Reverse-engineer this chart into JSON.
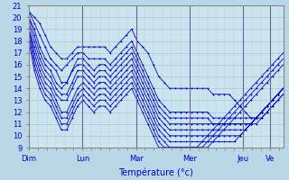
{
  "xlabel": "Température (°c)",
  "line_color": "#0000cc",
  "fig_bg": "#b8d8e8",
  "ax_bg": "#cce4ee",
  "ylim": [
    9,
    21
  ],
  "xlim": [
    0,
    228
  ],
  "yticks": [
    9,
    10,
    11,
    12,
    13,
    14,
    15,
    16,
    17,
    18,
    19,
    20,
    21
  ],
  "day_labels": [
    "Dim",
    "Lun",
    "Mar",
    "Mer",
    "Jeu",
    "Ve"
  ],
  "day_positions": [
    0,
    48,
    96,
    144,
    192,
    216
  ],
  "series": [
    [
      20.5,
      20.0,
      19.5,
      18.5,
      17.5,
      17.0,
      16.5,
      16.5,
      17.0,
      17.5,
      17.5,
      17.5,
      17.5,
      17.5,
      17.5,
      17.0,
      17.5,
      18.0,
      18.5,
      19.0,
      18.0,
      17.5,
      17.0,
      16.0,
      15.0,
      14.5,
      14.0,
      14.0,
      14.0,
      14.0,
      14.0,
      14.0,
      14.0,
      14.0,
      13.5,
      13.5,
      13.5,
      13.5,
      13.0,
      12.5,
      12.0,
      11.5,
      11.5,
      11.5,
      12.0,
      12.5,
      13.0,
      13.5
    ],
    [
      20.5,
      19.5,
      18.5,
      17.5,
      16.5,
      16.0,
      15.5,
      16.0,
      16.5,
      17.0,
      17.0,
      16.5,
      16.5,
      16.5,
      16.5,
      16.0,
      16.5,
      17.0,
      17.5,
      18.0,
      17.0,
      16.0,
      15.0,
      14.0,
      13.0,
      12.5,
      12.0,
      12.0,
      12.0,
      12.0,
      12.0,
      12.0,
      12.0,
      12.0,
      11.5,
      11.5,
      11.5,
      11.5,
      11.5,
      11.5,
      11.5,
      11.5,
      11.5,
      12.0,
      12.5,
      13.0,
      13.5,
      14.0
    ],
    [
      20.0,
      19.0,
      17.5,
      16.5,
      16.0,
      15.5,
      14.5,
      14.5,
      15.5,
      16.5,
      16.5,
      16.0,
      15.5,
      16.0,
      16.0,
      15.5,
      16.0,
      16.5,
      17.0,
      17.5,
      16.5,
      15.5,
      14.5,
      13.5,
      12.5,
      12.0,
      11.5,
      11.5,
      11.5,
      11.5,
      11.5,
      11.5,
      11.5,
      11.5,
      11.0,
      11.0,
      11.0,
      11.0,
      11.0,
      11.0,
      11.0,
      11.0,
      11.0,
      11.5,
      12.0,
      12.5,
      13.0,
      13.5
    ],
    [
      20.0,
      18.5,
      17.0,
      16.0,
      15.5,
      14.5,
      14.0,
      14.5,
      15.5,
      16.0,
      16.0,
      15.5,
      15.0,
      15.5,
      15.5,
      15.0,
      15.5,
      16.0,
      16.5,
      17.0,
      16.0,
      15.0,
      14.0,
      13.0,
      12.0,
      11.5,
      11.0,
      11.0,
      11.0,
      11.0,
      11.0,
      11.0,
      11.0,
      11.0,
      11.0,
      11.0,
      11.0,
      11.0,
      11.0,
      11.0,
      11.0,
      11.0,
      11.5,
      12.0,
      12.5,
      13.0,
      13.5,
      14.0
    ],
    [
      19.5,
      18.0,
      16.5,
      15.5,
      15.0,
      14.0,
      13.5,
      13.5,
      14.5,
      15.5,
      15.5,
      15.0,
      14.5,
      15.0,
      15.0,
      14.5,
      15.0,
      15.5,
      16.0,
      16.5,
      15.5,
      14.5,
      13.5,
      12.5,
      11.5,
      11.0,
      10.5,
      10.5,
      10.5,
      10.5,
      10.5,
      10.5,
      10.5,
      10.5,
      10.5,
      10.5,
      10.5,
      10.5,
      10.5,
      10.5,
      10.5,
      11.0,
      11.5,
      12.0,
      12.5,
      13.0,
      13.5,
      14.0
    ],
    [
      19.0,
      17.5,
      16.0,
      15.0,
      14.5,
      13.5,
      13.0,
      13.0,
      14.0,
      15.0,
      15.0,
      14.5,
      14.0,
      14.5,
      14.5,
      14.0,
      14.5,
      15.0,
      15.5,
      16.0,
      15.0,
      14.0,
      13.0,
      12.0,
      11.0,
      10.5,
      10.0,
      10.0,
      10.0,
      10.0,
      10.0,
      10.0,
      10.0,
      10.0,
      10.0,
      10.0,
      10.0,
      10.0,
      10.0,
      10.0,
      10.5,
      11.0,
      11.5,
      12.0,
      12.5,
      13.0,
      13.5,
      14.0
    ],
    [
      19.0,
      17.0,
      15.5,
      14.5,
      14.0,
      13.0,
      12.0,
      12.0,
      13.0,
      14.0,
      14.5,
      14.0,
      13.5,
      14.0,
      14.0,
      13.5,
      14.0,
      14.5,
      15.0,
      15.5,
      14.5,
      13.5,
      12.5,
      11.5,
      10.5,
      10.0,
      9.5,
      9.5,
      9.5,
      9.5,
      9.5,
      9.5,
      9.5,
      9.5,
      9.5,
      9.5,
      9.5,
      9.5,
      9.5,
      10.0,
      10.5,
      11.0,
      11.5,
      12.0,
      12.5,
      13.0,
      13.5,
      14.0
    ],
    [
      19.0,
      16.5,
      15.0,
      14.0,
      13.5,
      12.5,
      11.5,
      11.5,
      12.5,
      13.5,
      14.0,
      13.5,
      13.0,
      13.5,
      13.5,
      13.0,
      13.5,
      14.0,
      14.5,
      15.0,
      14.0,
      13.0,
      12.0,
      11.0,
      10.0,
      9.5,
      9.0,
      9.0,
      9.0,
      9.0,
      9.0,
      9.0,
      9.0,
      9.0,
      9.5,
      10.0,
      10.5,
      11.0,
      11.5,
      12.0,
      12.5,
      13.0,
      13.5,
      14.0,
      14.5,
      15.0,
      15.5,
      16.0
    ],
    [
      18.5,
      16.0,
      14.5,
      13.5,
      13.0,
      12.0,
      11.0,
      11.0,
      12.0,
      13.0,
      13.5,
      13.0,
      12.5,
      13.0,
      13.0,
      12.5,
      13.0,
      13.5,
      14.0,
      14.5,
      13.5,
      12.5,
      11.5,
      10.5,
      9.5,
      9.0,
      9.0,
      9.0,
      9.0,
      9.0,
      9.0,
      9.0,
      9.0,
      9.5,
      10.0,
      10.5,
      11.0,
      11.5,
      12.0,
      12.5,
      13.0,
      13.5,
      14.0,
      14.5,
      15.0,
      15.5,
      16.0,
      16.5
    ],
    [
      18.0,
      15.5,
      14.0,
      13.0,
      12.5,
      11.5,
      10.5,
      10.5,
      11.5,
      12.5,
      13.0,
      12.5,
      12.0,
      12.5,
      12.5,
      12.0,
      12.5,
      13.0,
      13.5,
      14.0,
      13.0,
      12.0,
      11.0,
      10.0,
      9.0,
      9.0,
      9.0,
      9.0,
      9.0,
      9.0,
      9.0,
      9.0,
      9.5,
      10.0,
      10.5,
      11.0,
      11.5,
      12.0,
      12.5,
      13.0,
      13.5,
      14.0,
      14.5,
      15.0,
      15.5,
      16.0,
      16.5,
      17.0
    ]
  ]
}
